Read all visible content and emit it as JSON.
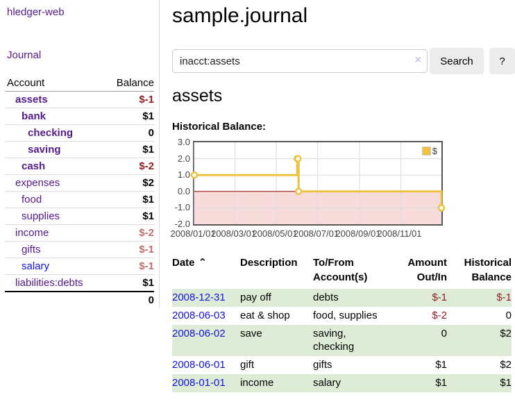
{
  "colors": {
    "link_purple": "#551a8b",
    "link_blue": "#1212dd",
    "neg_strong": "#8f1d1d",
    "neg_soft": "#c0706e",
    "row_green": "#deecd7",
    "button_bg": "#ececec",
    "divider": "#dddddd"
  },
  "sidebar": {
    "app_title": "hledger-web",
    "journal_link": "Journal",
    "accounts": {
      "col_account": "Account",
      "col_balance": "Balance",
      "rows": [
        {
          "name": "assets",
          "balance": "$-1",
          "depth": 1
        },
        {
          "name": "bank",
          "balance": "$1",
          "depth": 2
        },
        {
          "name": "checking",
          "balance": "0",
          "depth": 3
        },
        {
          "name": "saving",
          "balance": "$1",
          "depth": 3
        },
        {
          "name": "cash",
          "balance": "$-2",
          "depth": 2
        },
        {
          "name": "expenses",
          "balance": "$2",
          "depth": 1
        },
        {
          "name": "food",
          "balance": "$1",
          "depth": 2
        },
        {
          "name": "supplies",
          "balance": "$1",
          "depth": 2
        },
        {
          "name": "income",
          "balance": "$-2",
          "depth": 1
        },
        {
          "name": "gifts",
          "balance": "$-1",
          "depth": 2
        },
        {
          "name": "salary",
          "balance": "$-1",
          "depth": 2
        },
        {
          "name": "liabilities:debts",
          "balance": "$1",
          "depth": 1
        }
      ],
      "total": "0"
    }
  },
  "header": {
    "title": "sample.journal"
  },
  "search": {
    "value": "inacct:assets",
    "clear_icon": "×",
    "button_label": "Search",
    "help_label": "?"
  },
  "account_page": {
    "heading": "assets",
    "chart_label": "Historical Balance:"
  },
  "chart_data": {
    "type": "line",
    "step": true,
    "title": "Historical Balance:",
    "legend": "$",
    "legend_position": "top-right",
    "grid": true,
    "x_range": [
      "2008-01-01",
      "2008-12-31"
    ],
    "ylim": [
      -2,
      3
    ],
    "y_ticks": [
      3.0,
      2.0,
      1.0,
      0.0,
      -1.0,
      -2.0
    ],
    "x_ticks": [
      "2008/01/01",
      "2008/03/01",
      "2008/05/01",
      "2008/07/01",
      "2008/09/01",
      "2008/11/01"
    ],
    "series": [
      {
        "name": "$",
        "points": [
          {
            "date": "2008-01-01",
            "value": 1
          },
          {
            "date": "2008-06-01",
            "value": 2
          },
          {
            "date": "2008-06-02",
            "value": 2
          },
          {
            "date": "2008-06-03",
            "value": 0
          },
          {
            "date": "2008-12-31",
            "value": -1
          }
        ]
      }
    ],
    "negative_region_shaded": true,
    "colors": {
      "line": "#edc240",
      "marker_fill": "#ffffff",
      "negative_fill": "#f8dcdc",
      "zero_line": "#8b0000",
      "grid": "#dcdcdc",
      "border": "#555555",
      "tick_text": "#444444"
    }
  },
  "register": {
    "headers": {
      "date": "Date",
      "sort_indicator": "⌃",
      "description": "Description",
      "tofrom": "To/From Account(s)",
      "amount": "Amount Out/In",
      "balance": "Historical Balance"
    },
    "rows": [
      {
        "date": "2008-12-31",
        "description": "pay off",
        "accounts": "debts",
        "amount": "$-1",
        "balance": "$-1"
      },
      {
        "date": "2008-06-03",
        "description": "eat & shop",
        "accounts": "food, supplies",
        "amount": "$-2",
        "balance": "0"
      },
      {
        "date": "2008-06-02",
        "description": "save",
        "accounts": "saving, checking",
        "amount": "0",
        "balance": "$2"
      },
      {
        "date": "2008-06-01",
        "description": "gift",
        "accounts": "gifts",
        "amount": "$1",
        "balance": "$2"
      },
      {
        "date": "2008-01-01",
        "description": "income",
        "accounts": "salary",
        "amount": "$1",
        "balance": "$1"
      }
    ]
  }
}
